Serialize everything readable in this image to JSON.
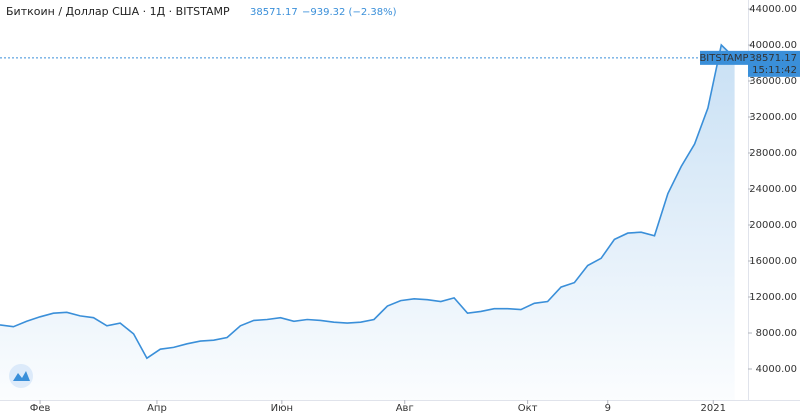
{
  "chart_data": {
    "type": "line",
    "title": "Биткоин / Доллар США · 1Д · BITSTAMP",
    "price": "38571.17",
    "change": "−939.32 (−2.38%)",
    "exchange_tag": "BITSTAMP",
    "price_tag": "38571.17",
    "time_tag": "15:11:42",
    "color": "#3a8fd9",
    "values": [
      8900,
      8700,
      9300,
      9800,
      10200,
      10300,
      9900,
      9700,
      8800,
      9100,
      7900,
      5200,
      6200,
      6400,
      6800,
      7100,
      7200,
      7500,
      8800,
      9400,
      9500,
      9700,
      9300,
      9500,
      9400,
      9200,
      9100,
      9200,
      9500,
      11000,
      11600,
      11800,
      11700,
      11500,
      11900,
      10200,
      10400,
      10700,
      10700,
      10600,
      11300,
      11500,
      13100,
      13600,
      15500,
      16300,
      18400,
      19100,
      19200,
      18800,
      23500,
      26500,
      29000,
      33000,
      40000,
      38571.17
    ],
    "xlim": [
      0,
      56
    ],
    "xticks": [
      {
        "value": 3,
        "label": "Фев"
      },
      {
        "value": 11.75,
        "label": "Апр"
      },
      {
        "value": 21.1,
        "label": "Июн"
      },
      {
        "value": 30.3,
        "label": "Авг"
      },
      {
        "value": 39.5,
        "label": "Окт"
      },
      {
        "value": 45.5,
        "label": "9"
      },
      {
        "value": 53.4,
        "label": "2021"
      }
    ],
    "ylim": [
      556,
      45000
    ],
    "yticks": [
      {
        "value": 4000,
        "label": "4000.00"
      },
      {
        "value": 8000,
        "label": "8000.00"
      },
      {
        "value": 12000,
        "label": "12000.00"
      },
      {
        "value": 16000,
        "label": "16000.00"
      },
      {
        "value": 20000,
        "label": "20000.00"
      },
      {
        "value": 24000,
        "label": "24000.00"
      },
      {
        "value": 28000,
        "label": "28000.00"
      },
      {
        "value": 32000,
        "label": "32000.00"
      },
      {
        "value": 36000,
        "label": "36000.00"
      },
      {
        "value": 40000,
        "label": "40000.00"
      },
      {
        "value": 44000,
        "label": "44000.00"
      }
    ]
  }
}
